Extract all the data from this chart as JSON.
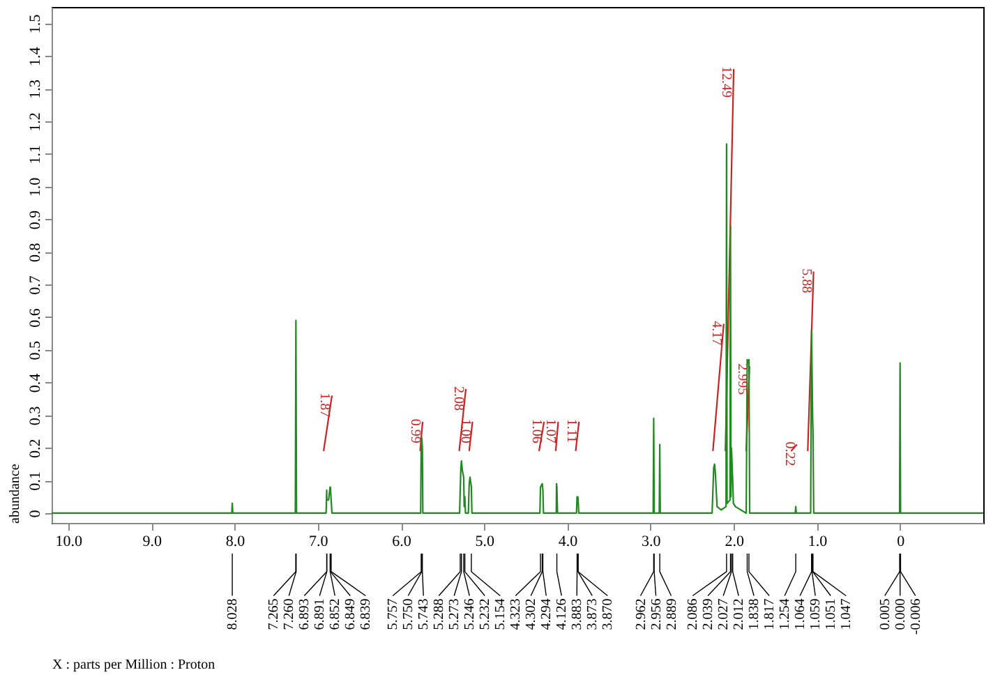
{
  "chart_data": {
    "type": "line",
    "ylabel": "abundance",
    "xlim": [
      10.2,
      -1.0
    ],
    "xticks": [
      {
        "value": 10,
        "label": "10.0"
      },
      {
        "value": 9,
        "label": "9.0"
      },
      {
        "value": 8,
        "label": "8.0"
      },
      {
        "value": 7,
        "label": "7.0"
      },
      {
        "value": 6,
        "label": "6.0"
      },
      {
        "value": 5,
        "label": "5.0"
      },
      {
        "value": 4,
        "label": "4.0"
      },
      {
        "value": 3,
        "label": "3.0"
      },
      {
        "value": 2,
        "label": "2.0"
      },
      {
        "value": 1,
        "label": "1.0"
      },
      0
    ],
    "ylim": [
      -0.03,
      1.55
    ],
    "yticks": [
      0,
      0.1,
      0.2,
      0.3,
      0.4,
      0.5,
      0.6,
      0.7,
      0.8,
      0.9,
      {
        "value": 1,
        "label": "1.0"
      },
      1.1,
      1.2,
      1.3,
      1.4,
      1.5
    ],
    "grid": false,
    "marker": "none",
    "line_style": "solid",
    "series": [
      {
        "color": "#1f8a1f",
        "x": [
          10.2,
          8.034,
          8.028,
          8.022,
          7.27,
          7.263,
          7.256,
          6.9,
          6.893,
          6.891,
          6.87,
          6.852,
          6.849,
          6.839,
          6.83,
          5.763,
          5.757,
          5.75,
          5.743,
          5.737,
          5.295,
          5.288,
          5.28,
          5.273,
          5.262,
          5.246,
          5.24,
          5.232,
          5.225,
          5.19,
          5.18,
          5.17,
          5.154,
          5.147,
          4.33,
          4.323,
          4.302,
          4.294,
          4.287,
          4.133,
          4.13,
          4.126,
          4.118,
          3.89,
          3.883,
          3.873,
          3.87,
          3.863,
          2.968,
          2.962,
          2.956,
          2.895,
          2.889,
          2.883,
          2.26,
          2.24,
          2.23,
          2.22,
          2.2,
          2.15,
          2.092,
          2.086,
          2.08,
          2.045,
          2.039,
          2.033,
          2.027,
          2.012,
          2.004,
          1.98,
          1.85,
          1.838,
          1.827,
          1.817,
          1.808,
          1.26,
          1.254,
          1.248,
          1.075,
          1.064,
          1.059,
          1.051,
          1.047,
          1.038,
          0.006,
          0.0,
          -0.006,
          -1.0
        ],
        "values": [
          0,
          0,
          0.03,
          0,
          0,
          0.59,
          0,
          0,
          0.07,
          0.04,
          0.04,
          0.08,
          0.08,
          0.04,
          0,
          0,
          0.22,
          0.23,
          0.2,
          0,
          0,
          0.07,
          0.14,
          0.16,
          0.13,
          0.11,
          0.02,
          0.05,
          0,
          0,
          0.09,
          0.11,
          0.08,
          0,
          0,
          0.08,
          0.09,
          0.07,
          0,
          0,
          0.09,
          0.08,
          0,
          0,
          0.05,
          0.05,
          0.04,
          0,
          0,
          0.29,
          0,
          0,
          0.21,
          0,
          0,
          0.14,
          0.15,
          0.12,
          0.02,
          0.01,
          0.02,
          1.13,
          0.03,
          0.04,
          0.88,
          0.05,
          0.2,
          0.1,
          0.03,
          0.02,
          0,
          0.47,
          0.46,
          0.47,
          0,
          0,
          0.02,
          0,
          0,
          0.56,
          0.45,
          0.29,
          0.25,
          0,
          0,
          0.46,
          0,
          0
        ]
      },
      {
        "color": "#cc2222",
        "x": [
          6.93,
          6.83
        ],
        "values": [
          0.19,
          0.36
        ]
      },
      {
        "color": "#cc2222",
        "x": [
          5.77,
          5.74
        ],
        "values": [
          0.19,
          0.28
        ]
      },
      {
        "color": "#cc2222",
        "x": [
          5.3,
          5.22
        ],
        "values": [
          0.19,
          0.38
        ]
      },
      {
        "color": "#cc2222",
        "x": [
          5.18,
          5.14
        ],
        "values": [
          0.19,
          0.28
        ]
      },
      {
        "color": "#cc2222",
        "x": [
          4.34,
          4.28
        ],
        "values": [
          0.19,
          0.28
        ]
      },
      {
        "color": "#cc2222",
        "x": [
          4.14,
          4.11
        ],
        "values": [
          0.19,
          0.28
        ]
      },
      {
        "color": "#cc2222",
        "x": [
          3.9,
          3.86
        ],
        "values": [
          0.19,
          0.28
        ]
      },
      {
        "color": "#cc2222",
        "x": [
          2.25,
          2.12
        ],
        "values": [
          0.19,
          0.58
        ]
      },
      {
        "color": "#cc2222",
        "x": [
          2.1,
          2.0
        ],
        "values": [
          0.19,
          1.36
        ]
      },
      {
        "color": "#cc2222",
        "x": [
          1.85,
          1.81
        ],
        "values": [
          0.19,
          0.45
        ]
      },
      {
        "color": "#cc2222",
        "x": [
          1.31,
          1.24
        ],
        "values": [
          0.19,
          0.21
        ]
      },
      {
        "color": "#cc2222",
        "x": [
          1.11,
          1.04
        ],
        "values": [
          0.19,
          0.74
        ]
      }
    ],
    "annotations": [
      "X : parts per Million : Proton",
      {
        "text": "1.87",
        "x": 6.83,
        "y": 0.36
      },
      {
        "text": "0.99",
        "x": 5.74,
        "y": 0.28
      },
      {
        "text": "2.08",
        "x": 5.22,
        "y": 0.38
      },
      {
        "text": "1.00",
        "x": 5.14,
        "y": 0.28
      },
      {
        "text": "1.06",
        "x": 4.28,
        "y": 0.28
      },
      {
        "text": "1.07",
        "x": 4.11,
        "y": 0.28
      },
      {
        "text": "1.11",
        "x": 3.86,
        "y": 0.28
      },
      {
        "text": "4.17",
        "x": 2.12,
        "y": 0.58
      },
      {
        "text": "12.49",
        "x": 2.0,
        "y": 1.36
      },
      {
        "text": "2.995",
        "x": 1.81,
        "y": 0.45
      },
      {
        "text": "0.22",
        "x": 1.24,
        "y": 0.21
      },
      {
        "text": "5.88",
        "x": 1.04,
        "y": 0.74
      },
      {
        "text": "8.028",
        "x": 8.028
      },
      {
        "text": "7.265",
        "x": 7.265
      },
      {
        "text": "7.260",
        "x": 7.26
      },
      {
        "text": "6.893",
        "x": 6.893
      },
      {
        "text": "6.891",
        "x": 6.891
      },
      {
        "text": "6.852",
        "x": 6.852
      },
      {
        "text": "6.849",
        "x": 6.849
      },
      {
        "text": "6.839",
        "x": 6.839
      },
      {
        "text": "5.757",
        "x": 5.757
      },
      {
        "text": "5.750",
        "x": 5.75
      },
      {
        "text": "5.743",
        "x": 5.743
      },
      {
        "text": "5.288",
        "x": 5.288
      },
      {
        "text": "5.273",
        "x": 5.273
      },
      {
        "text": "5.246",
        "x": 5.246
      },
      {
        "text": "5.232",
        "x": 5.232
      },
      {
        "text": "5.154",
        "x": 5.154
      },
      {
        "text": "4.323",
        "x": 4.323
      },
      {
        "text": "4.302",
        "x": 4.302
      },
      {
        "text": "4.294",
        "x": 4.294
      },
      {
        "text": "4.126",
        "x": 4.126
      },
      {
        "text": "3.883",
        "x": 3.883
      },
      {
        "text": "3.873",
        "x": 3.873
      },
      {
        "text": "3.870",
        "x": 3.87
      },
      {
        "text": "2.962",
        "x": 2.962
      },
      {
        "text": "2.956",
        "x": 2.956
      },
      {
        "text": "2.889",
        "x": 2.889
      },
      {
        "text": "2.086",
        "x": 2.086
      },
      {
        "text": "2.039",
        "x": 2.039
      },
      {
        "text": "2.027",
        "x": 2.027
      },
      {
        "text": "2.012",
        "x": 2.012
      },
      {
        "text": "1.838",
        "x": 1.838
      },
      {
        "text": "1.817",
        "x": 1.817
      },
      {
        "text": "1.254",
        "x": 1.254
      },
      {
        "text": "1.064",
        "x": 1.064
      },
      {
        "text": "1.059",
        "x": 1.059
      },
      {
        "text": "1.051",
        "x": 1.051
      },
      {
        "text": "1.047",
        "x": 1.047
      },
      {
        "text": "0.005",
        "x": 0.005
      },
      {
        "text": "0.000",
        "x": 0.0
      },
      {
        "text": "-0.006",
        "x": -0.006
      }
    ]
  }
}
